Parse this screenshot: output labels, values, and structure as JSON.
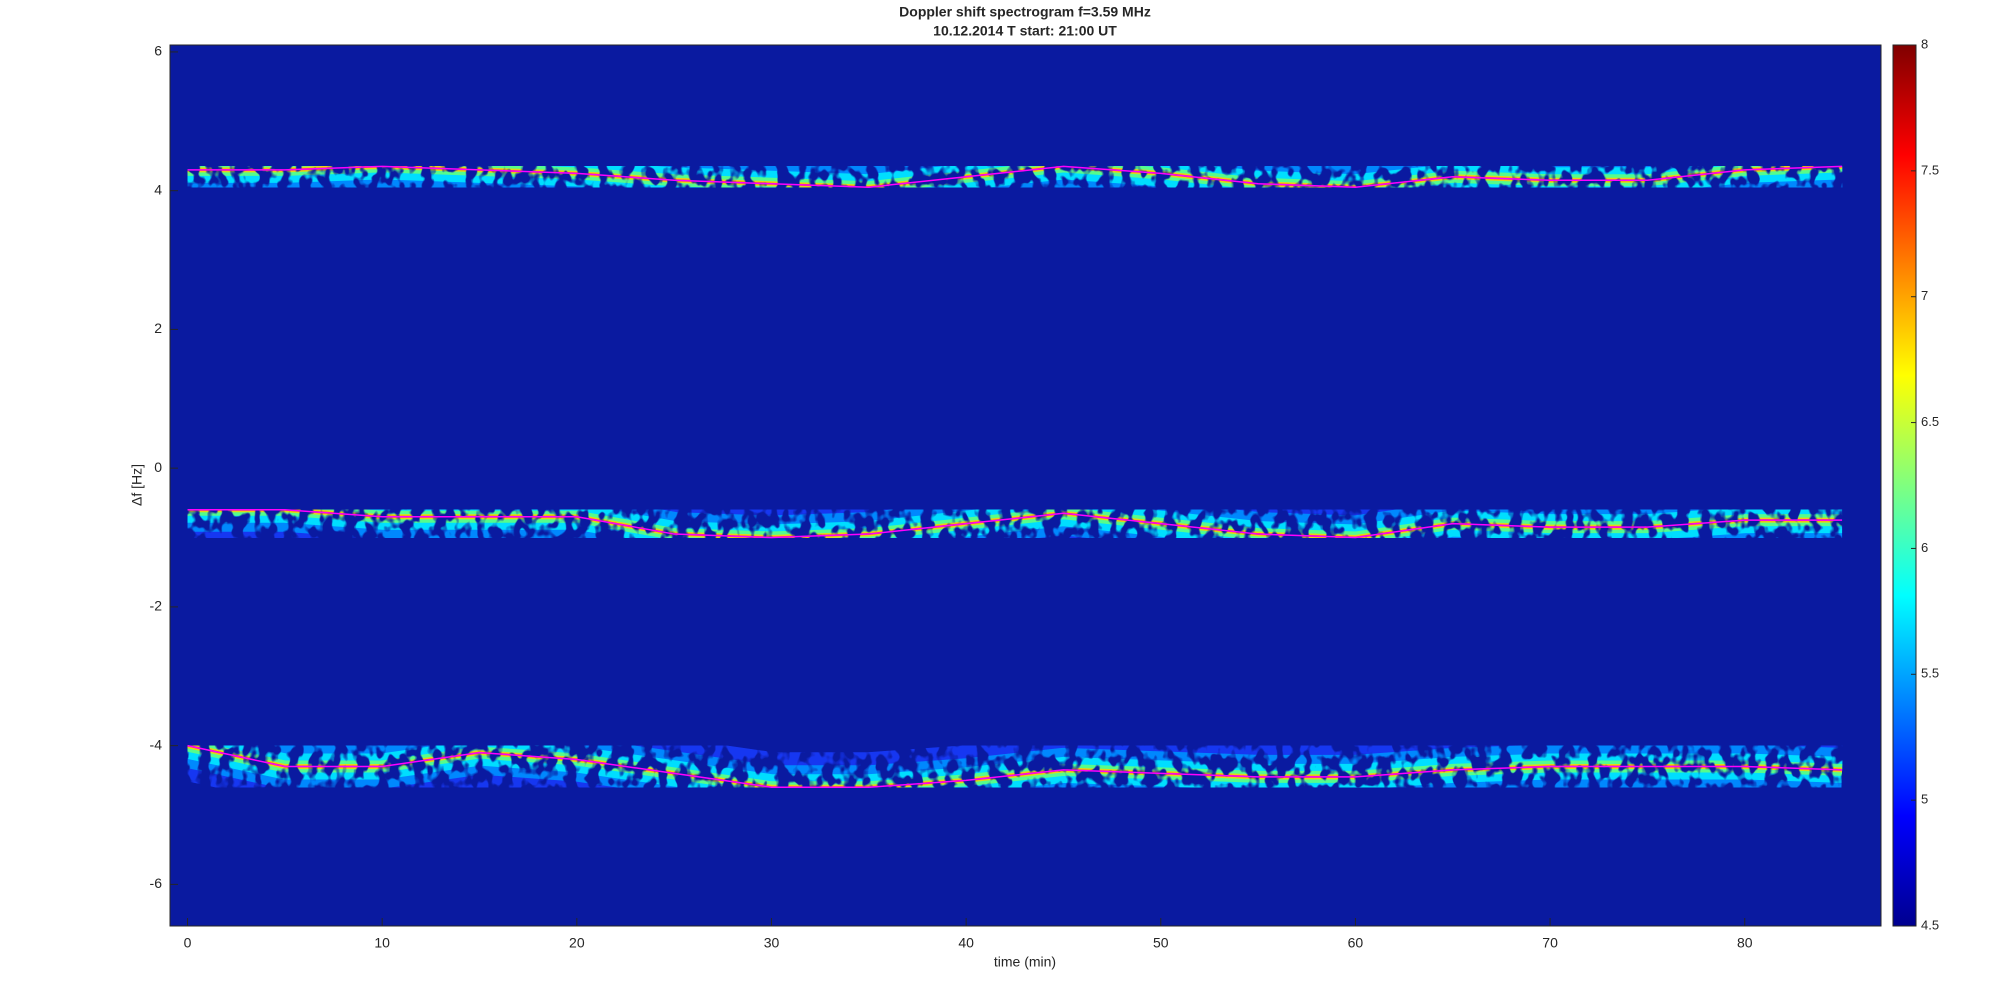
{
  "chart_data": {
    "type": "spectrogram",
    "title": "Doppler shift spectrogram f=3.59 MHz",
    "subtitle": "10.12.2014   T start: 21:00 UT",
    "x_label": "time (min)",
    "y_label": "Δf [Hz]",
    "x": [
      0,
      5,
      10,
      15,
      20,
      25,
      30,
      35,
      40,
      45,
      50,
      55,
      60,
      65,
      70,
      75,
      80,
      85
    ],
    "series": [
      {
        "color": "#ff00ff",
        "values": [
          4.3,
          4.3,
          4.35,
          4.3,
          4.25,
          4.15,
          4.1,
          4.05,
          4.2,
          4.35,
          4.25,
          4.1,
          4.05,
          4.2,
          4.15,
          4.15,
          4.3,
          4.35
        ]
      },
      {
        "color": "#ff00ff",
        "values": [
          -0.6,
          -0.6,
          -0.7,
          -0.7,
          -0.7,
          -0.95,
          -1.0,
          -0.95,
          -0.8,
          -0.65,
          -0.8,
          -0.95,
          -1.0,
          -0.8,
          -0.85,
          -0.85,
          -0.75,
          -0.75
        ]
      },
      {
        "color": "#ff00ff",
        "values": [
          -4.0,
          -4.3,
          -4.3,
          -4.1,
          -4.2,
          -4.4,
          -4.6,
          -4.6,
          -4.5,
          -4.35,
          -4.4,
          -4.45,
          -4.45,
          -4.35,
          -4.3,
          -4.3,
          -4.3,
          -4.35
        ]
      }
    ],
    "xlim": [
      -0.9,
      87
    ],
    "ylim": [
      -6.6,
      6.1
    ],
    "xticks": [
      0,
      10,
      20,
      30,
      40,
      50,
      60,
      70,
      80
    ],
    "yticks": [
      -6,
      -4,
      -2,
      0,
      2,
      4,
      6
    ],
    "colormap": "jet",
    "background": "#0a1aa0",
    "clim": [
      4.5,
      8
    ],
    "cticks": [
      4.5,
      5,
      5.5,
      6,
      6.5,
      7,
      7.5,
      8
    ]
  }
}
